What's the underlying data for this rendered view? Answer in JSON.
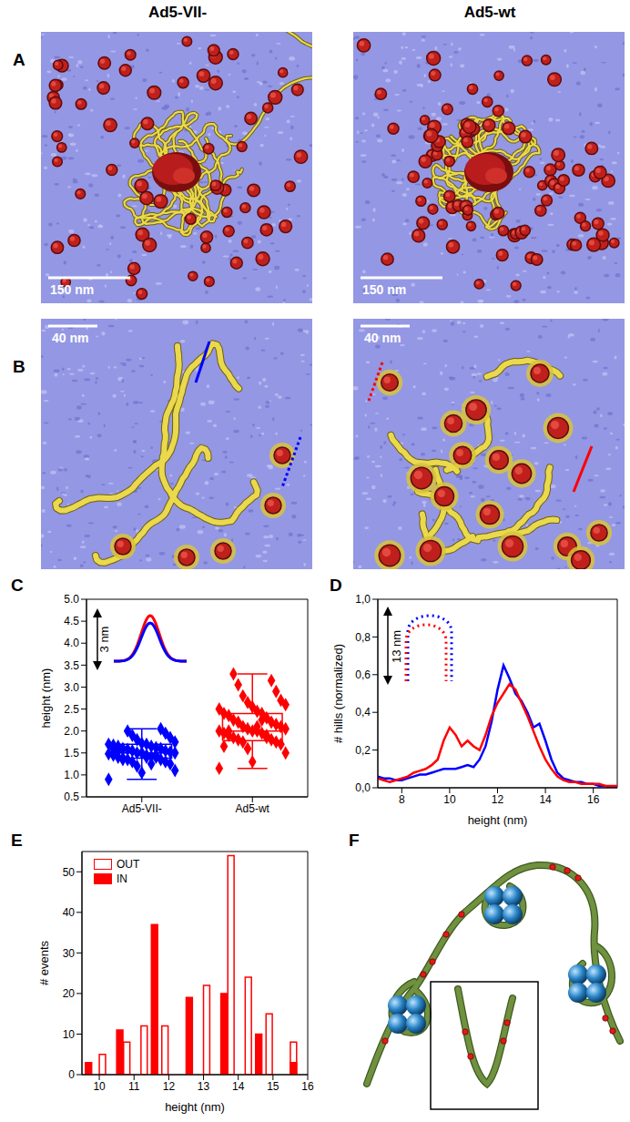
{
  "column_titles": [
    "Ad5-VII-",
    "Ad5-wt"
  ],
  "panel_labels": [
    "A",
    "B",
    "C",
    "D",
    "E",
    "F"
  ],
  "images": [
    {
      "scale_bars": [
        "150 nm",
        "150 nm"
      ]
    },
    {
      "scale_bars": [
        "40 nm",
        "40 nm"
      ]
    }
  ],
  "chart_data": [
    {
      "type": "box",
      "ylabel": "height (nm)",
      "annotation": "3 nm",
      "categories": [
        "Ad5-VII-",
        "Ad5-wt"
      ],
      "colors": [
        "#0000ff",
        "#ff0000"
      ],
      "marker": "diamond",
      "points": [
        [
          0.9,
          1.05,
          1.1,
          1.2,
          1.25,
          1.3,
          1.3,
          1.35,
          1.35,
          1.38,
          1.4,
          1.4,
          1.42,
          1.45,
          1.45,
          1.48,
          1.5,
          1.5,
          1.5,
          1.52,
          1.55,
          1.55,
          1.58,
          1.6,
          1.6,
          1.62,
          1.65,
          1.65,
          1.68,
          1.7,
          1.7,
          1.72,
          1.75,
          1.8,
          1.85,
          1.9,
          1.95,
          2.0,
          2.05,
          1.35,
          1.45,
          1.55,
          1.25,
          1.6,
          1.4
        ],
        [
          1.15,
          1.3,
          1.5,
          1.6,
          1.7,
          1.75,
          1.75,
          1.8,
          1.8,
          1.85,
          1.9,
          1.9,
          1.95,
          1.95,
          2.0,
          2.0,
          2.0,
          2.05,
          2.05,
          2.1,
          2.1,
          2.15,
          2.2,
          2.2,
          2.25,
          2.3,
          2.35,
          2.4,
          2.4,
          2.45,
          2.5,
          2.55,
          2.6,
          2.65,
          2.7,
          2.8,
          2.9,
          3.05,
          3.15,
          3.3,
          1.85,
          2.0,
          2.25,
          1.65,
          2.1
        ]
      ],
      "boxes": [
        {
          "whisker_low": 0.9,
          "q1": 1.38,
          "median": 1.5,
          "q3": 1.7,
          "whisker_high": 2.05
        },
        {
          "whisker_low": 1.15,
          "q1": 1.78,
          "median": 2.0,
          "q3": 2.4,
          "whisker_high": 3.3
        }
      ],
      "ylim": [
        0.5,
        5.0
      ],
      "yticks": [
        0.5,
        {
          "value": 1,
          "label": "1.0"
        },
        1.5,
        {
          "value": 2,
          "label": "2.0"
        },
        2.5,
        {
          "value": 3,
          "label": "3.0"
        },
        3.5,
        {
          "value": 4,
          "label": "4.0"
        },
        4.5,
        {
          "value": 5,
          "label": "5.0"
        }
      ]
    },
    {
      "type": "line",
      "xlabel": "height (nm)",
      "ylabel": "# hills (normalized)",
      "annotation": "13 nm",
      "x": [
        7,
        7.25,
        7.5,
        7.75,
        8,
        8.25,
        8.5,
        8.75,
        9,
        9.25,
        9.5,
        9.75,
        10,
        10.25,
        10.5,
        10.75,
        11,
        11.25,
        11.5,
        11.75,
        12,
        12.25,
        12.5,
        12.75,
        13,
        13.25,
        13.5,
        13.75,
        14,
        14.25,
        14.5,
        14.75,
        15,
        15.25,
        15.5,
        15.75,
        16,
        16.25,
        16.5,
        16.75,
        17
      ],
      "series": [
        {
          "color": "#0000ff",
          "line_style": "solid",
          "values": [
            0.06,
            0.05,
            0.05,
            0.04,
            0.04,
            0.05,
            0.06,
            0.07,
            0.07,
            0.08,
            0.09,
            0.1,
            0.1,
            0.1,
            0.11,
            0.12,
            0.11,
            0.15,
            0.22,
            0.35,
            0.52,
            0.65,
            0.58,
            0.5,
            0.46,
            0.4,
            0.32,
            0.34,
            0.25,
            0.15,
            0.08,
            0.05,
            0.04,
            0.03,
            0.03,
            0.02,
            0.02,
            0.01,
            0.01,
            0,
            0
          ]
        },
        {
          "color": "#ff0000",
          "line_style": "solid",
          "values": [
            0.05,
            0.04,
            0.03,
            0.04,
            0.05,
            0.06,
            0.08,
            0.09,
            0.1,
            0.12,
            0.15,
            0.25,
            0.32,
            0.28,
            0.22,
            0.25,
            0.22,
            0.2,
            0.28,
            0.38,
            0.45,
            0.5,
            0.55,
            0.52,
            0.45,
            0.38,
            0.3,
            0.22,
            0.15,
            0.1,
            0.06,
            0.04,
            0.03,
            0.03,
            0.02,
            0.02,
            0.02,
            0.02,
            0.01,
            0.01,
            0.01
          ]
        }
      ],
      "xlim": [
        7,
        17
      ],
      "xticks": [
        8,
        10,
        12,
        14,
        16
      ],
      "ylim": [
        0,
        1
      ],
      "yticks": [
        {
          "value": 0,
          "label": "0,0"
        },
        {
          "value": 0.2,
          "label": "0,2"
        },
        {
          "value": 0.4,
          "label": "0,4"
        },
        {
          "value": 0.6,
          "label": "0,6"
        },
        {
          "value": 0.8,
          "label": "0,8"
        },
        {
          "value": 1,
          "label": "1,0"
        }
      ]
    },
    {
      "type": "bar",
      "xlabel": "height (nm)",
      "ylabel": "# events",
      "legend": "upper left",
      "series": [
        {
          "name": "OUT",
          "color": "#ff0000",
          "marker": "hollow",
          "x": [
            10.1,
            10.8,
            11.3,
            11.9,
            13.1,
            13.8,
            14.3,
            14.9,
            15.6
          ],
          "values": [
            5,
            8,
            12,
            12,
            22,
            54,
            24,
            15,
            8
          ]
        },
        {
          "name": "IN",
          "color": "#ff0000",
          "marker": "filled",
          "x": [
            9.7,
            10.6,
            11.6,
            12.6,
            13.6,
            14.6,
            15.6
          ],
          "values": [
            3,
            11,
            37,
            19,
            20,
            10,
            3
          ]
        }
      ],
      "xlim": [
        9.5,
        16
      ],
      "xticks": [
        10,
        11,
        12,
        13,
        14,
        15,
        16
      ],
      "ylim": [
        0,
        55
      ],
      "yticks": [
        0,
        10,
        20,
        30,
        40,
        50
      ]
    }
  ]
}
